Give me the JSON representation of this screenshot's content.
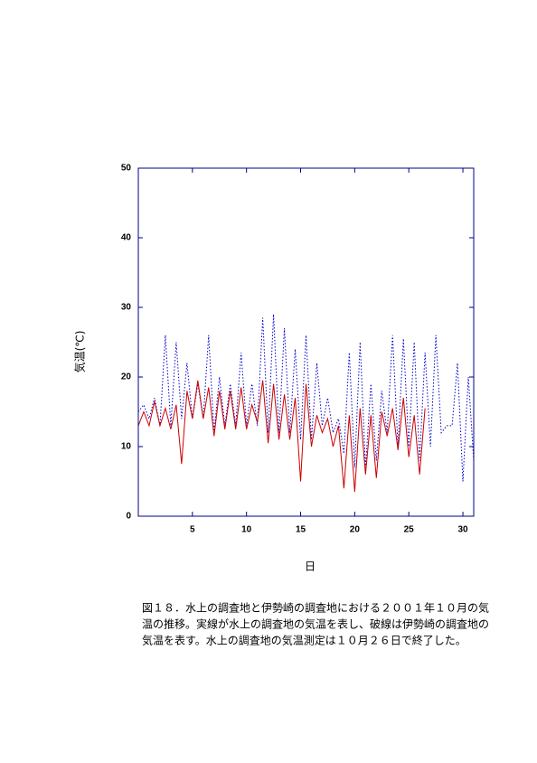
{
  "chart_data": {
    "type": "line",
    "x_label": "日",
    "y_label": "気温(℃)",
    "caption": [
      "図１８．水上の調査地と伊勢崎の調査地における２００１年１０月の気",
      "温の推移。実線が水上の調査地の気温を表し、破線は伊勢崎の調査地の",
      "気温を表す。水上の調査地の気温測定は１０月２６日で終了した。"
    ],
    "x": [
      0,
      0.5,
      1,
      1.5,
      2,
      2.5,
      3,
      3.5,
      4,
      4.5,
      5,
      5.5,
      6,
      6.5,
      7,
      7.5,
      8,
      8.5,
      9,
      9.5,
      10,
      10.5,
      11,
      11.5,
      12,
      12.5,
      13,
      13.5,
      14,
      14.5,
      15,
      15.5,
      16,
      16.5,
      17,
      17.5,
      18,
      18.5,
      19,
      19.5,
      20,
      20.5,
      21,
      21.5,
      22,
      22.5,
      23,
      23.5,
      24,
      24.5,
      25,
      25.5,
      26,
      26.5,
      27,
      27.5,
      28,
      28.5,
      29,
      29.5,
      30,
      30.5,
      31
    ],
    "series": [
      {
        "color": "#0000cc",
        "dash": true,
        "values": [
          15,
          16,
          14,
          17,
          13,
          26,
          13,
          25,
          14,
          22,
          14,
          19,
          14,
          26,
          12,
          20,
          13,
          19,
          13,
          23.5,
          13,
          19,
          13,
          28.5,
          12,
          29,
          12,
          27,
          12,
          24,
          11,
          26,
          11,
          22,
          13,
          17,
          12,
          14,
          9,
          23.5,
          7,
          25,
          7,
          19,
          8,
          18,
          12,
          26,
          10,
          25.5,
          10,
          25,
          8,
          23.5,
          10,
          26,
          12,
          13,
          13,
          22,
          5,
          20,
          8
        ]
      },
      {
        "color": "#cc0000",
        "dash": false,
        "values": [
          13,
          15,
          13,
          16.5,
          13,
          15.5,
          12.5,
          16,
          7.5,
          18,
          14,
          19.5,
          14,
          18.5,
          11.5,
          18,
          12.5,
          18,
          12.5,
          18.5,
          12.5,
          16,
          13.5,
          19.5,
          10.5,
          19,
          11,
          17.5,
          11,
          17,
          5,
          19,
          10,
          14.5,
          12,
          14,
          10,
          13,
          4,
          14.5,
          3.5,
          15.5,
          6,
          14.5,
          5.5,
          15,
          11.5,
          15.5,
          9.5,
          17,
          8.5,
          14.5,
          6,
          15.5,
          null,
          null,
          null,
          null,
          null,
          null,
          null,
          null,
          null
        ]
      }
    ],
    "xlim": [
      0,
      31
    ],
    "xticks": [
      5,
      10,
      15,
      20,
      25,
      30
    ],
    "ylim": [
      0,
      50
    ],
    "yticks": [
      0,
      10,
      20,
      30,
      40,
      50
    ]
  }
}
